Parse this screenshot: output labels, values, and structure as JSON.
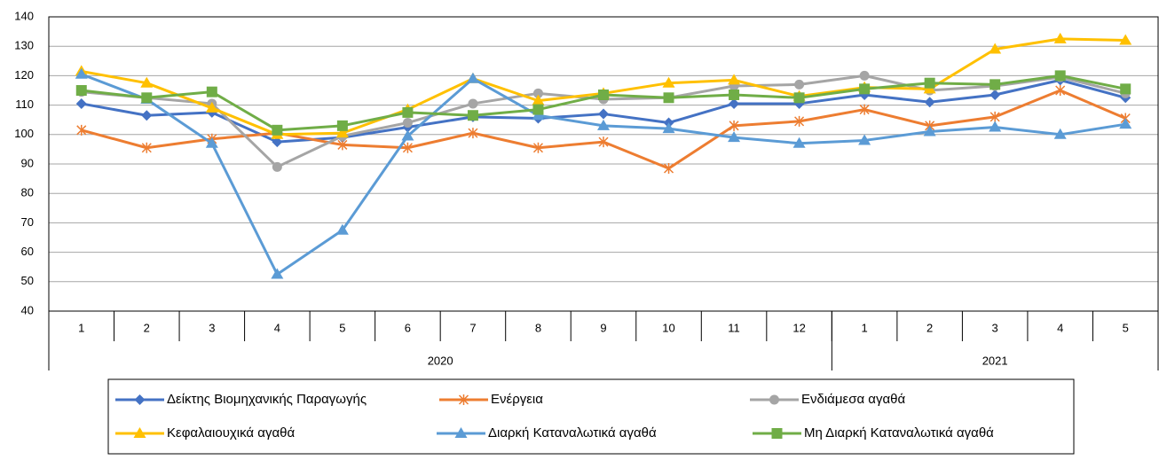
{
  "chart_data": {
    "type": "line",
    "category_groups": [
      {
        "label": "2020",
        "categories": [
          "1",
          "2",
          "3",
          "4",
          "5",
          "6",
          "7",
          "8",
          "9",
          "10",
          "11",
          "12"
        ]
      },
      {
        "label": "2021",
        "categories": [
          "1",
          "2",
          "3",
          "4",
          "5"
        ]
      }
    ],
    "ylim": [
      40,
      140
    ],
    "yticks": [
      40,
      50,
      60,
      70,
      80,
      90,
      100,
      110,
      120,
      130,
      140
    ],
    "grid": true,
    "legend": "bottom",
    "series": [
      {
        "name": "Δείκτης Βιομηχανικής Παραγωγής",
        "color": "#4472c4",
        "marker": "diamond",
        "values": [
          110.5,
          106.5,
          107.5,
          97.5,
          99,
          102.5,
          106,
          105.5,
          107,
          104,
          110.5,
          110.5,
          113.5,
          111,
          113.5,
          118.5,
          112.5
        ]
      },
      {
        "name": "Ενέργεια",
        "color": "#ed7d31",
        "marker": "star",
        "values": [
          101.5,
          95.5,
          98.5,
          100.5,
          96.5,
          95.5,
          100.5,
          95.5,
          97.5,
          88.5,
          103,
          104.5,
          108.5,
          103,
          106,
          115,
          105.5
        ]
      },
      {
        "name": "Ενδιάμεσα αγαθά",
        "color": "#a5a5a5",
        "marker": "circle",
        "values": [
          114.5,
          112.5,
          110.5,
          89,
          99.5,
          104,
          110.5,
          114,
          112,
          112.5,
          116.5,
          117,
          120,
          115,
          116.5,
          119.5,
          114
        ]
      },
      {
        "name": "Κεφαλαιουχικά αγαθά",
        "color": "#ffc000",
        "marker": "triangle",
        "values": [
          121.5,
          117.5,
          109,
          100,
          100.5,
          108.5,
          119,
          111.5,
          114,
          117.5,
          118.5,
          113,
          116,
          115.5,
          129,
          132.5,
          132
        ]
      },
      {
        "name": "Διαρκή Καταναλωτικά αγαθά",
        "color": "#5b9bd5",
        "marker": "triangle",
        "values": [
          120.5,
          112,
          97,
          52.5,
          67.5,
          99.5,
          119,
          106.5,
          103,
          102,
          99,
          97,
          98,
          101,
          102.5,
          100,
          103.5
        ]
      },
      {
        "name": "Μη Διαρκή Καταναλωτικά αγαθά",
        "color": "#70ad47",
        "marker": "square",
        "values": [
          115,
          112.5,
          114.5,
          101.5,
          103,
          107.5,
          106.5,
          108.5,
          113.5,
          112.5,
          113.5,
          112.5,
          115.5,
          117.5,
          117,
          120,
          115.5
        ]
      }
    ]
  }
}
